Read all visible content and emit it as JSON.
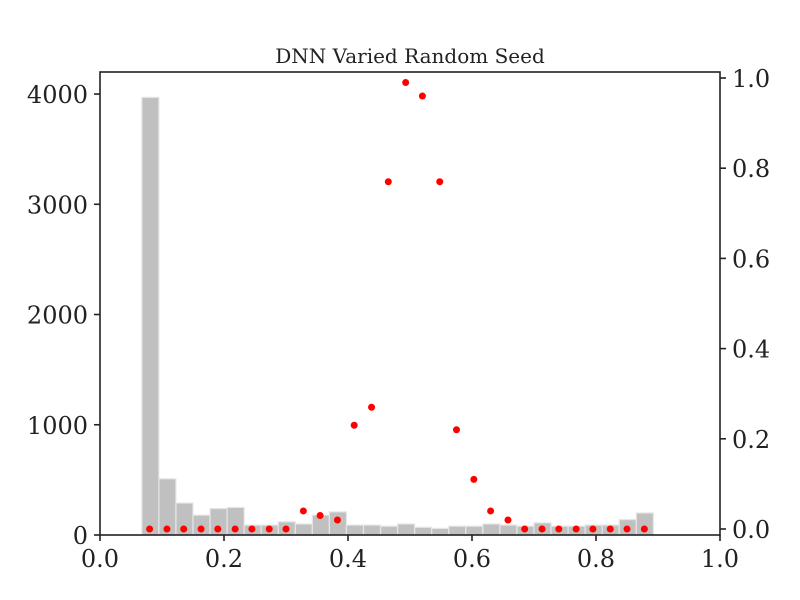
{
  "chart_data": {
    "type": "bar",
    "title": "DNN Varied Random Seed",
    "xlabel": "",
    "ylabel": "",
    "xlim": [
      0.0,
      1.0
    ],
    "ylim": [
      0,
      4200
    ],
    "y2lim": [
      0.0,
      1.0
    ],
    "x_ticks": [
      "0.0",
      "0.2",
      "0.4",
      "0.6",
      "0.8",
      "1.0"
    ],
    "y_ticks": [
      "0",
      "1000",
      "2000",
      "3000",
      "4000"
    ],
    "y2_ticks": [
      "0.0",
      "0.2",
      "0.4",
      "0.6",
      "0.8",
      "1.0"
    ],
    "grid": false,
    "legend": "none",
    "colors": {
      "bars": "#c0c0c0",
      "points": "#ff0000"
    },
    "series": [
      {
        "kind": "histogram",
        "axis": "left",
        "bin_start": 0.0675,
        "bin_width": 0.0275,
        "values": [
          3970,
          510,
          290,
          180,
          240,
          250,
          90,
          90,
          120,
          100,
          180,
          210,
          90,
          90,
          80,
          100,
          70,
          60,
          80,
          80,
          100,
          90,
          80,
          110,
          80,
          80,
          90,
          90,
          140,
          200
        ]
      },
      {
        "kind": "scatter",
        "axis": "right",
        "x": [
          0.08,
          0.108,
          0.135,
          0.163,
          0.19,
          0.218,
          0.245,
          0.273,
          0.3,
          0.328,
          0.355,
          0.383,
          0.41,
          0.438,
          0.465,
          0.493,
          0.52,
          0.548,
          0.575,
          0.603,
          0.63,
          0.658,
          0.685,
          0.713,
          0.74,
          0.768,
          0.795,
          0.823,
          0.85,
          0.878
        ],
        "y": [
          0.0,
          0.0,
          0.0,
          0.0,
          0.0,
          0.0,
          0.0,
          0.0,
          0.0,
          0.04,
          0.03,
          0.02,
          0.23,
          0.27,
          0.77,
          0.99,
          0.96,
          0.77,
          0.22,
          0.11,
          0.04,
          0.02,
          0.0,
          0.0,
          0.0,
          0.0,
          0.0,
          0.0,
          0.0,
          0.0
        ]
      }
    ]
  }
}
